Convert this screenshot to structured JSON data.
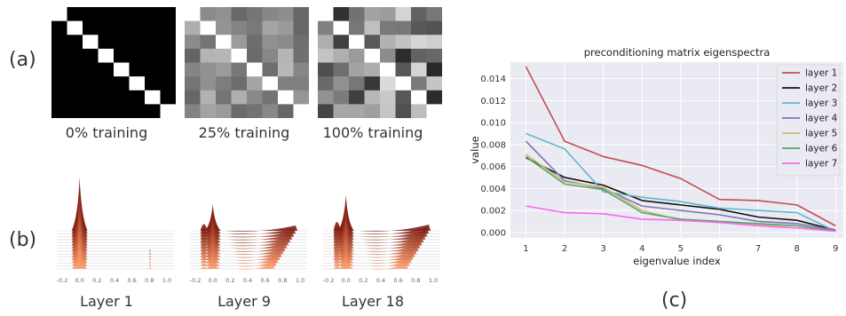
{
  "panel_a": {
    "label": "(a)",
    "captions": [
      "0% training",
      "25% training",
      "100% training"
    ]
  },
  "panel_b": {
    "label": "(b)",
    "captions": [
      "Layer 1",
      "Layer 9",
      "Layer 18"
    ],
    "tick_labels": [
      "-0.2",
      "0.0",
      "0.2",
      "0.4",
      "0.6",
      "0.8",
      "1.0"
    ]
  },
  "panel_c": {
    "label": "(c)"
  },
  "chart_data": {
    "type": "line",
    "title": "preconditioning matrix eigenspectra",
    "xlabel": "eigenvalue index",
    "ylabel": "value",
    "x": [
      1,
      2,
      3,
      4,
      5,
      6,
      7,
      8,
      9
    ],
    "xticks": [
      "1",
      "2",
      "3",
      "4",
      "5",
      "6",
      "7",
      "8",
      "9"
    ],
    "ylim": [
      -0.0005,
      0.0155
    ],
    "yticks": [
      "0.000",
      "0.002",
      "0.004",
      "0.006",
      "0.008",
      "0.010",
      "0.012",
      "0.014"
    ],
    "ytick_values": [
      0,
      0.002,
      0.004,
      0.006,
      0.008,
      0.01,
      0.012,
      0.014
    ],
    "grid": true,
    "legend_position": "top-right",
    "series": [
      {
        "name": "layer 1",
        "color": "#c44e52",
        "values": [
          0.0151,
          0.0083,
          0.0069,
          0.0061,
          0.0049,
          0.003,
          0.0029,
          0.0025,
          0.0006
        ]
      },
      {
        "name": "layer 2",
        "color": "#111111",
        "values": [
          0.0068,
          0.005,
          0.0043,
          0.0029,
          0.0025,
          0.0021,
          0.0014,
          0.0011,
          0.0002
        ]
      },
      {
        "name": "layer 3",
        "color": "#64b5cd",
        "values": [
          0.009,
          0.0076,
          0.0037,
          0.0032,
          0.0028,
          0.0022,
          0.002,
          0.0018,
          0.0001
        ]
      },
      {
        "name": "layer 4",
        "color": "#8172b2",
        "values": [
          0.0083,
          0.0047,
          0.004,
          0.0024,
          0.002,
          0.0016,
          0.001,
          0.0008,
          0.0002
        ]
      },
      {
        "name": "layer 5",
        "color": "#ccb974",
        "values": [
          0.0071,
          0.0046,
          0.0041,
          0.002,
          0.0011,
          0.0009,
          0.0007,
          0.0006,
          0.0001
        ]
      },
      {
        "name": "layer 6",
        "color": "#55a868",
        "values": [
          0.0069,
          0.0044,
          0.0039,
          0.0018,
          0.0012,
          0.001,
          0.0008,
          0.0006,
          0.0001
        ]
      },
      {
        "name": "layer 7",
        "color": "#ff66ee",
        "values": [
          0.0024,
          0.0018,
          0.0017,
          0.0012,
          0.0011,
          0.0009,
          0.0006,
          0.0004,
          0.0001
        ]
      }
    ]
  }
}
